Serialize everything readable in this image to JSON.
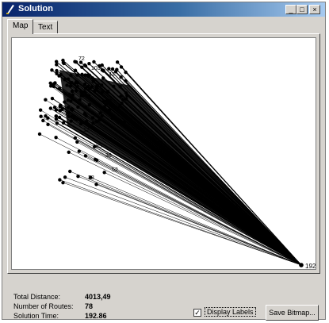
{
  "window": {
    "title": "Solution",
    "minimize_label": "_",
    "maximize_label": "□",
    "close_label": "×"
  },
  "tabs": [
    {
      "label": "Map",
      "active": true
    },
    {
      "label": "Text",
      "active": false
    }
  ],
  "map": {
    "depot_label": "192",
    "node_labels": [
      "72",
      "103",
      "42",
      "35",
      "12",
      "85",
      "36",
      "52",
      "38"
    ]
  },
  "stats": {
    "total_distance_label": "Total Distance:",
    "total_distance_value": "4013,49",
    "routes_label": "Number of Routes:",
    "routes_value": "78",
    "time_label": "Solution Time:",
    "time_value": "192.86"
  },
  "display_labels": {
    "label": "Display Labels",
    "checked": true,
    "check_mark": "✓"
  },
  "save_button": {
    "label": "Save Bitmap..."
  },
  "colors": {
    "title_bar_start": "#08246b",
    "title_bar_end": "#a6caf0",
    "dialog": "#d6d3ce",
    "plot_ink": "#000000"
  }
}
